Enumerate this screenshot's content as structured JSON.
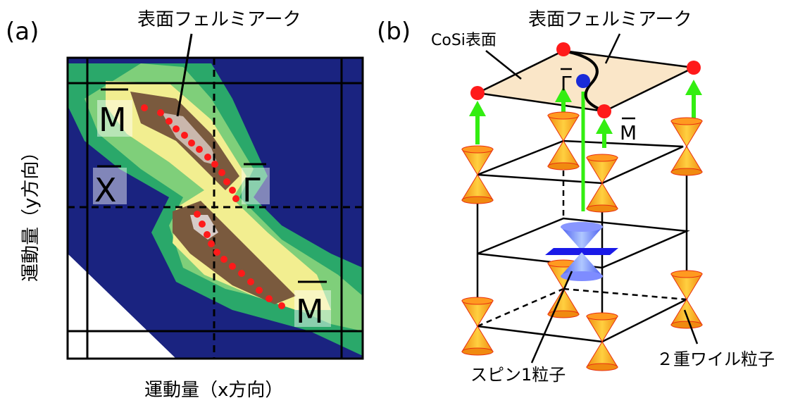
{
  "panel_a": {
    "label": "(a)",
    "arc_label": "表面フェルミアーク",
    "point_M_top": "M",
    "point_X": "X",
    "point_Gamma": "Γ",
    "point_M_bottom": "M",
    "x_axis_label": "運動量（x方向）",
    "y_axis_label": "運動量（y方向）",
    "colors": {
      "background": "#1a2380",
      "arc_dots": "#ff1a1a",
      "intensity_low": "#2aa86a",
      "intensity_mid": "#f2ee90",
      "intensity_high": "#7a5a3e"
    }
  },
  "panel_b": {
    "label": "(b)",
    "arc_label": "表面フェルミアーク",
    "surface_label": "CoSi表面",
    "point_Gamma": "Γ",
    "point_M": "M",
    "spin1_label": "スピン1粒子",
    "weyl_label": "２重ワイル粒子",
    "colors": {
      "surface": "#fae6c8",
      "node": "#ff1a1a",
      "gamma_node": "#1a2bd8",
      "arrow": "#33ee11",
      "cone": "#f7a21c",
      "spin1_cone": "#6a78f5"
    }
  }
}
